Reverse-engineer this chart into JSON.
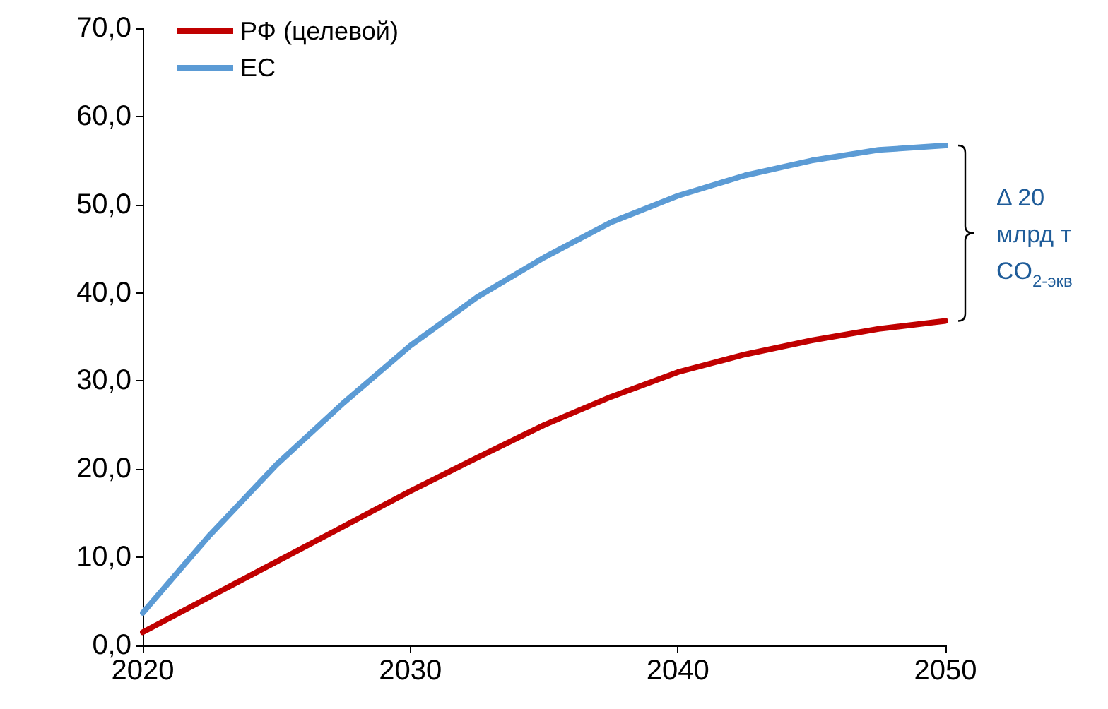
{
  "chart_data": {
    "type": "line",
    "x": [
      2020,
      2022.5,
      2025,
      2027.5,
      2030,
      2032.5,
      2035,
      2037.5,
      2040,
      2042.5,
      2045,
      2047.5,
      2050
    ],
    "series": [
      {
        "name": "РФ (целевой)",
        "color": "#c00000",
        "values": [
          1.5,
          5.5,
          9.5,
          13.5,
          17.5,
          21.3,
          25,
          28.2,
          31,
          33,
          34.6,
          35.9,
          36.8
        ]
      },
      {
        "name": "ЕС",
        "color": "#5b9bd5",
        "values": [
          3.7,
          12.5,
          20.5,
          27.5,
          34,
          39.5,
          44,
          48,
          51,
          53.3,
          55,
          56.2,
          56.7
        ]
      }
    ],
    "xlim": [
      2020,
      2050
    ],
    "xticks": [
      2020,
      2030,
      2040,
      2050
    ],
    "ylim": [
      0,
      70
    ],
    "yticks": [
      {
        "value": 0,
        "label": "0,0"
      },
      {
        "value": 10,
        "label": "10,0"
      },
      {
        "value": 20,
        "label": "20,0"
      },
      {
        "value": 30,
        "label": "30,0"
      },
      {
        "value": 40,
        "label": "40,0"
      },
      {
        "value": 50,
        "label": "50,0"
      },
      {
        "value": 60,
        "label": "60,0"
      },
      {
        "value": 70,
        "label": "70,0"
      }
    ],
    "annotations": [
      "Δ 20\nмлрд т\nCO$_{2-экв}$"
    ],
    "grid": false,
    "legend": "top left",
    "marker": "none",
    "line_style": "solid"
  }
}
